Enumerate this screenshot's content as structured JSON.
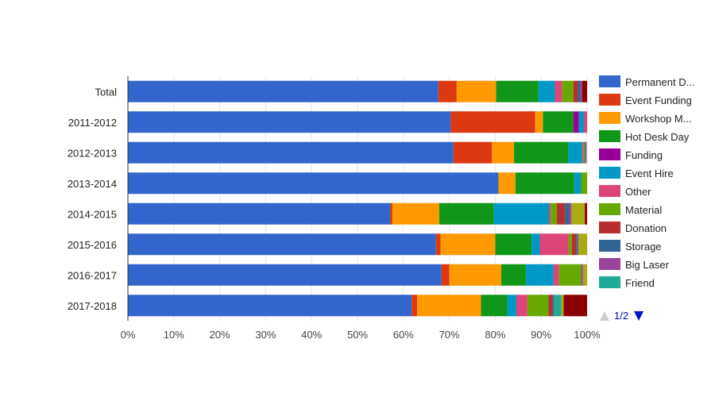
{
  "chart_data": {
    "type": "bar",
    "orientation": "horizontal",
    "stacking": "percent",
    "title": "",
    "xlabel": "",
    "ylabel": "",
    "xlim": [
      0,
      100
    ],
    "x_ticks": [
      "0%",
      "10%",
      "20%",
      "30%",
      "40%",
      "50%",
      "60%",
      "70%",
      "80%",
      "90%",
      "100%"
    ],
    "grid": true,
    "legend_position": "right",
    "categories": [
      "Total",
      "2011-2012",
      "2012-2013",
      "2013-2014",
      "2014-2015",
      "2015-2016",
      "2016-2017",
      "2017-2018"
    ],
    "series": [
      {
        "name": "Permanent D...",
        "color": "#3366cc",
        "values": [
          67.6,
          70.3,
          70.9,
          80.7,
          57.1,
          67.1,
          68.3,
          61.8
        ]
      },
      {
        "name": "Event Funding",
        "color": "#dc3912",
        "values": [
          4.0,
          18.4,
          8.4,
          0,
          0.5,
          1.0,
          1.7,
          1.2
        ]
      },
      {
        "name": "Workshop M...",
        "color": "#ff9900",
        "values": [
          8.6,
          1.7,
          4.8,
          3.7,
          10.2,
          11.9,
          11.3,
          13.9
        ]
      },
      {
        "name": "Hot Desk Day",
        "color": "#109618",
        "values": [
          9.2,
          6.6,
          11.8,
          12.8,
          11.9,
          7.9,
          5.4,
          5.7
        ]
      },
      {
        "name": "Funding",
        "color": "#990099",
        "values": [
          0,
          1.2,
          0,
          0,
          0,
          0,
          0,
          0
        ]
      },
      {
        "name": "Event Hire",
        "color": "#0099c6",
        "values": [
          3.6,
          1.1,
          3.0,
          1.5,
          12.0,
          1.8,
          6.0,
          2.0
        ]
      },
      {
        "name": "Other",
        "color": "#dd4477",
        "values": [
          1.6,
          0.7,
          0.3,
          0,
          0.4,
          6.3,
          1.2,
          2.4
        ]
      },
      {
        "name": "Material",
        "color": "#66aa00",
        "values": [
          2.4,
          0,
          0.3,
          1.3,
          1.3,
          0.7,
          4.8,
          4.6
        ]
      },
      {
        "name": "Donation",
        "color": "#b82e2e",
        "values": [
          1.0,
          0,
          0,
          0,
          1.8,
          0.9,
          0,
          0.9
        ]
      },
      {
        "name": "Storage",
        "color": "#316395",
        "values": [
          0.6,
          0,
          0.2,
          0,
          0.9,
          0.3,
          0,
          0.3
        ]
      },
      {
        "name": "Big Laser",
        "color": "#994499",
        "values": [
          0.3,
          0,
          0.2,
          0,
          0.5,
          0.2,
          0.4,
          0
        ]
      },
      {
        "name": "Friend",
        "color": "#22aa99",
        "values": [
          0,
          0,
          0,
          0,
          0,
          0,
          0,
          1.6
        ]
      },
      {
        "name": "",
        "color": "#aaaa11",
        "values": [
          0,
          0,
          0,
          0,
          2.9,
          1.9,
          0.9,
          0.5
        ]
      },
      {
        "name": "",
        "color": "#8b0000",
        "values": [
          1.1,
          0,
          0,
          0,
          0.5,
          0,
          0,
          5.1
        ]
      }
    ]
  },
  "legend": {
    "visible_count": 12,
    "pager": {
      "label": "1/2",
      "prev_color": "#cccccc",
      "next_color": "#0011cc"
    }
  }
}
